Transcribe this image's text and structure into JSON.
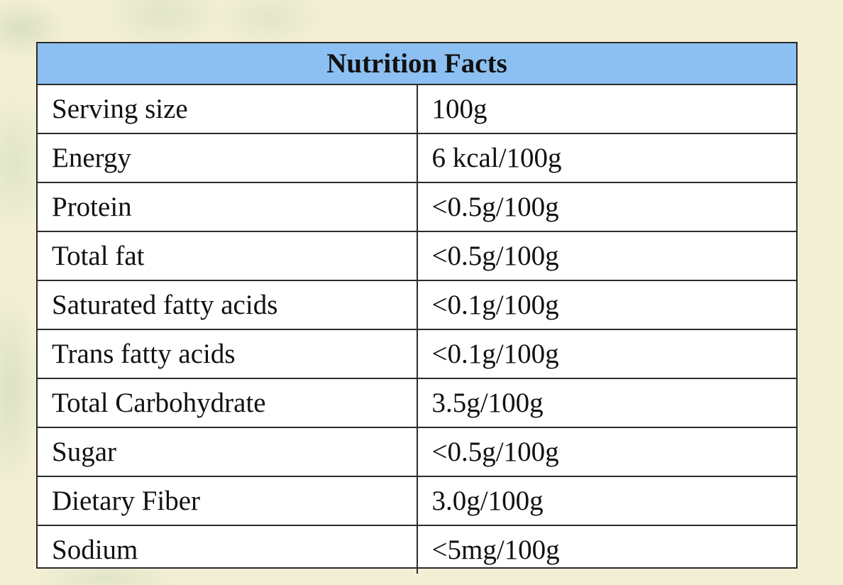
{
  "table": {
    "title": "Nutrition Facts",
    "rows": [
      {
        "name": "Serving size",
        "value": "100g"
      },
      {
        "name": "Energy",
        "value": "6 kcal/100g"
      },
      {
        "name": "Protein",
        "value": "<0.5g/100g"
      },
      {
        "name": "Total fat",
        "value": "<0.5g/100g"
      },
      {
        "name": "Saturated fatty acids",
        "value": "<0.1g/100g"
      },
      {
        "name": "Trans fatty acids",
        "value": "<0.1g/100g"
      },
      {
        "name": "Total Carbohydrate",
        "value": "3.5g/100g"
      },
      {
        "name": "Sugar",
        "value": "<0.5g/100g"
      },
      {
        "name": "Dietary Fiber",
        "value": "3.0g/100g"
      },
      {
        "name": "Sodium",
        "value": "<5mg/100g"
      }
    ]
  },
  "colors": {
    "header_background": "#8dc0f2",
    "page_background": "#f2efd4",
    "border": "#2b2b2b"
  }
}
